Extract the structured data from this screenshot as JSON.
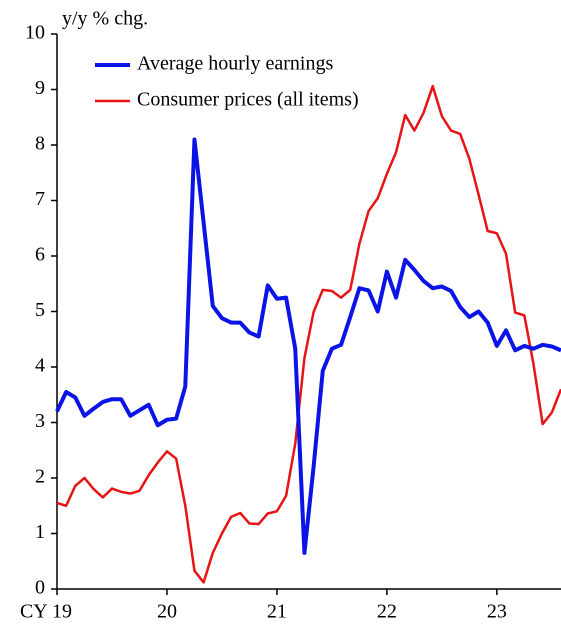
{
  "chart_data": {
    "type": "line",
    "axis_label": "y/y % chg.",
    "categories": [
      "CY 19",
      null,
      null,
      null,
      null,
      null,
      null,
      null,
      null,
      null,
      null,
      null,
      "20",
      null,
      null,
      null,
      null,
      null,
      null,
      null,
      null,
      null,
      null,
      null,
      "21",
      null,
      null,
      null,
      null,
      null,
      null,
      null,
      null,
      null,
      null,
      null,
      "22",
      null,
      null,
      null,
      null,
      null,
      null,
      null,
      null,
      null,
      null,
      null,
      "23",
      null,
      null,
      null,
      null,
      null,
      null,
      null
    ],
    "series": [
      {
        "name": "Average hourly earnings",
        "color": "#0a14e6",
        "values": [
          3.2,
          3.55,
          3.45,
          3.12,
          3.25,
          3.37,
          3.42,
          3.42,
          3.12,
          3.22,
          3.32,
          2.95,
          3.05,
          3.07,
          3.65,
          8.1,
          6.6,
          5.1,
          4.88,
          4.8,
          4.8,
          4.62,
          4.55,
          5.47,
          5.23,
          5.25,
          4.33,
          0.65,
          2.2,
          3.93,
          4.33,
          4.4,
          4.9,
          5.42,
          5.38,
          5.0,
          5.72,
          5.25,
          5.93,
          5.75,
          5.55,
          5.42,
          5.45,
          5.37,
          5.08,
          4.9,
          5.0,
          4.8,
          4.38,
          4.66,
          4.3,
          4.38,
          4.33,
          4.4,
          4.37,
          4.3
        ]
      },
      {
        "name": "Consumer prices (all items)",
        "color": "#e61414",
        "values": [
          1.55,
          1.5,
          1.86,
          2.0,
          1.8,
          1.65,
          1.81,
          1.75,
          1.72,
          1.77,
          2.05,
          2.28,
          2.48,
          2.35,
          1.5,
          0.33,
          0.12,
          0.65,
          1.0,
          1.3,
          1.37,
          1.18,
          1.17,
          1.36,
          1.4,
          1.68,
          2.62,
          4.16,
          4.99,
          5.39,
          5.37,
          5.25,
          5.39,
          6.22,
          6.81,
          7.04,
          7.48,
          7.87,
          8.54,
          8.26,
          8.58,
          9.06,
          8.52,
          8.26,
          8.2,
          7.75,
          7.11,
          6.45,
          6.41,
          6.04,
          4.98,
          4.93,
          4.05,
          2.97,
          3.18,
          3.6
        ]
      }
    ],
    "ylim": [
      0,
      10
    ],
    "yticks": [
      0,
      1,
      2,
      3,
      4,
      5,
      6,
      7,
      8,
      9,
      10
    ],
    "grid": false
  }
}
